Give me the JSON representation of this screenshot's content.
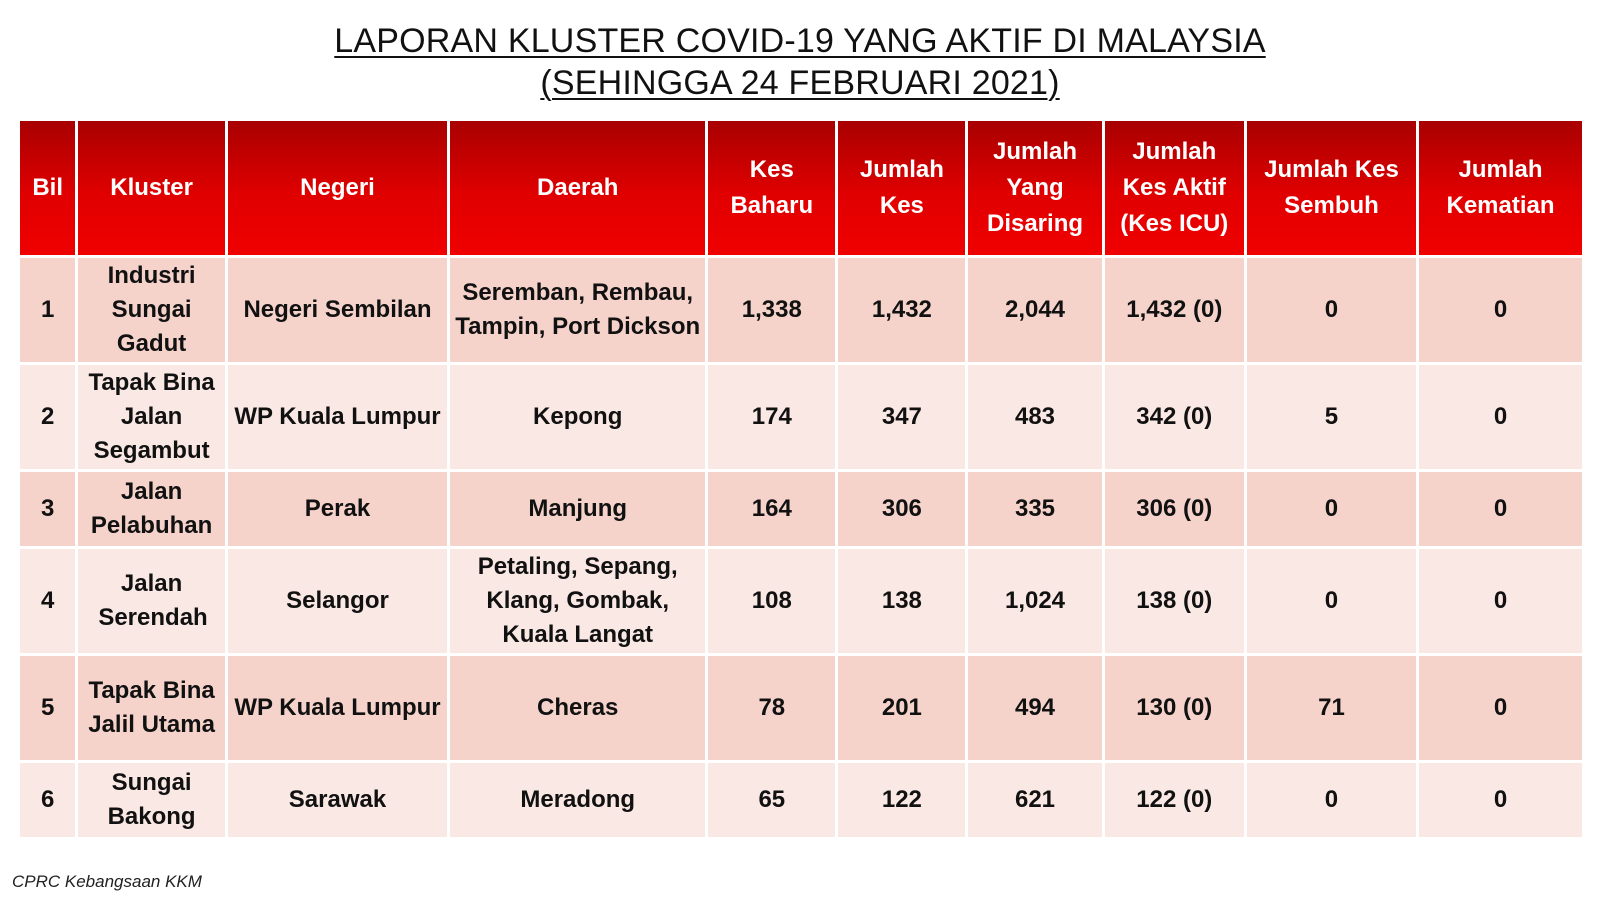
{
  "title": {
    "line1": "LAPORAN KLUSTER COVID-19 YANG AKTIF DI MALAYSIA",
    "line2": "(SEHINGGA 24 FEBRUARI 2021)"
  },
  "table": {
    "headers": {
      "bil": "Bil",
      "kluster": "Kluster",
      "negeri": "Negeri",
      "daerah": "Daerah",
      "kes_baharu": "Kes Baharu",
      "jumlah_kes": "Jumlah Kes",
      "jumlah_disaring": "Jumlah Yang Disaring",
      "jumlah_kes_aktif": "Jumlah Kes Aktif (Kes ICU)",
      "jumlah_kes_sembuh": "Jumlah Kes Sembuh",
      "jumlah_kematian": "Jumlah Kematian"
    },
    "rows": [
      {
        "bil": "1",
        "kluster": "Industri Sungai Gadut",
        "negeri": "Negeri Sembilan",
        "daerah": "Seremban, Rembau, Tampin, Port Dickson",
        "kes_baharu": "1,338",
        "jumlah_kes": "1,432",
        "jumlah_disaring": "2,044",
        "jumlah_kes_aktif": "1,432 (0)",
        "jumlah_kes_sembuh": "0",
        "jumlah_kematian": "0"
      },
      {
        "bil": "2",
        "kluster": "Tapak Bina Jalan Segambut",
        "negeri": "WP Kuala Lumpur",
        "daerah": "Kepong",
        "kes_baharu": "174",
        "jumlah_kes": "347",
        "jumlah_disaring": "483",
        "jumlah_kes_aktif": "342 (0)",
        "jumlah_kes_sembuh": "5",
        "jumlah_kematian": "0"
      },
      {
        "bil": "3",
        "kluster": "Jalan Pelabuhan",
        "negeri": "Perak",
        "daerah": "Manjung",
        "kes_baharu": "164",
        "jumlah_kes": "306",
        "jumlah_disaring": "335",
        "jumlah_kes_aktif": "306 (0)",
        "jumlah_kes_sembuh": "0",
        "jumlah_kematian": "0"
      },
      {
        "bil": "4",
        "kluster": "Jalan Serendah",
        "negeri": "Selangor",
        "daerah": "Petaling, Sepang, Klang, Gombak, Kuala Langat",
        "kes_baharu": "108",
        "jumlah_kes": "138",
        "jumlah_disaring": "1,024",
        "jumlah_kes_aktif": "138 (0)",
        "jumlah_kes_sembuh": "0",
        "jumlah_kematian": "0"
      },
      {
        "bil": "5",
        "kluster": "Tapak Bina Jalil Utama",
        "negeri": "WP Kuala Lumpur",
        "daerah": "Cheras",
        "kes_baharu": "78",
        "jumlah_kes": "201",
        "jumlah_disaring": "494",
        "jumlah_kes_aktif": "130 (0)",
        "jumlah_kes_sembuh": "71",
        "jumlah_kematian": "0"
      },
      {
        "bil": "6",
        "kluster": "Sungai Bakong",
        "negeri": "Sarawak",
        "daerah": "Meradong",
        "kes_baharu": "65",
        "jumlah_kes": "122",
        "jumlah_disaring": "621",
        "jumlah_kes_aktif": "122 (0)",
        "jumlah_kes_sembuh": "0",
        "jumlah_kematian": "0"
      }
    ]
  },
  "footer": {
    "source": "CPRC Kebangsaan KKM"
  },
  "colors": {
    "header_dark_red": "#a80000",
    "header_red": "#f00000",
    "row_pink": "#f5d3cb",
    "row_light_pink": "#fae8e4"
  }
}
